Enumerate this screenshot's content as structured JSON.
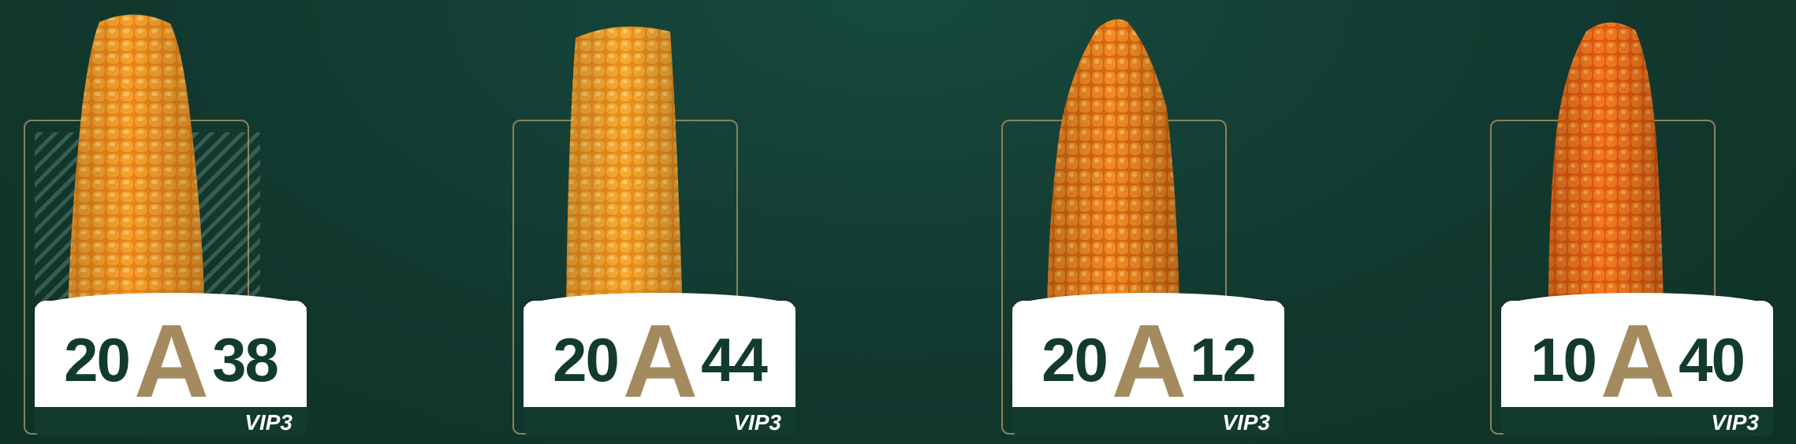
{
  "colors": {
    "background": "#12392f",
    "frame": "#8c8159",
    "plate": "#ffffff",
    "number": "#123a2f",
    "letter": "#a48b5f",
    "vip": "#ffffff",
    "kernel": "#f7a12c"
  },
  "products": [
    {
      "left": "20",
      "letter": "A",
      "right": "38",
      "tag": "VIP3"
    },
    {
      "left": "20",
      "letter": "A",
      "right": "44",
      "tag": "VIP3"
    },
    {
      "left": "20",
      "letter": "A",
      "right": "12",
      "tag": "VIP3"
    },
    {
      "left": "10",
      "letter": "A",
      "right": "40",
      "tag": "VIP3"
    }
  ]
}
